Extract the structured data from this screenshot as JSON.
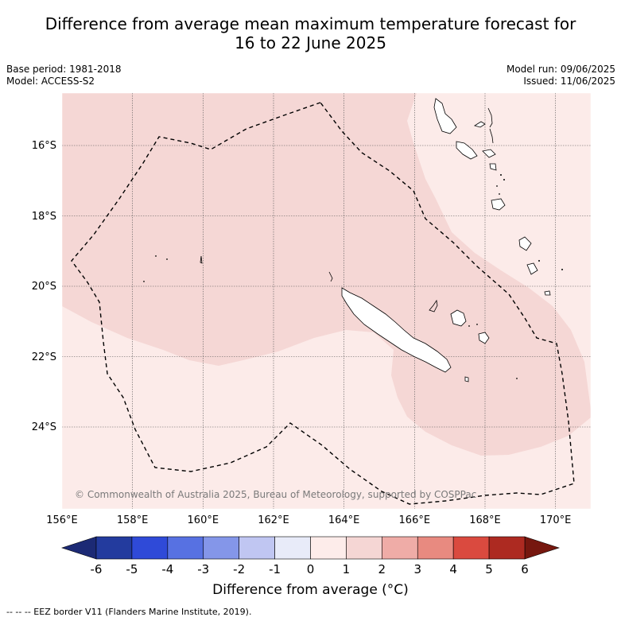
{
  "title": {
    "line1": "Difference from average mean maximum temperature forecast for",
    "line2": "16 to 22 June 2025"
  },
  "meta": {
    "base_period": "Base period: 1981-2018",
    "model": "Model: ACCESS-S2",
    "model_run": "Model run: 09/06/2025",
    "issued": "Issued: 11/06/2025"
  },
  "map": {
    "region": "New Caledonia and surrounding ocean",
    "lon_range": [
      156,
      171
    ],
    "lat_range": [
      -26.0,
      -14.8
    ],
    "lon_ticks": [
      "156°E",
      "158°E",
      "160°E",
      "162°E",
      "164°E",
      "166°E",
      "168°E",
      "170°E"
    ],
    "lat_ticks": [
      "16°S",
      "18°S",
      "20°S",
      "22°S",
      "24°S"
    ],
    "copyright": "© Commonwealth of Australia 2025, Bureau of Meteorology, supported by COSPPac",
    "regions": [
      {
        "anomaly_range": "1 to 2",
        "color": "#f5d7d5",
        "area": "north-west and eastern waters"
      },
      {
        "anomaly_range": "0 to 1",
        "color": "#fcebe9",
        "area": "south-west, far north-east and south-east"
      }
    ]
  },
  "colorbar": {
    "tick_labels": [
      "-6",
      "-5",
      "-4",
      "-3",
      "-2",
      "-1",
      "0",
      "1",
      "2",
      "3",
      "4",
      "5",
      "6"
    ],
    "colors": [
      "#233b9e",
      "#2f4ad8",
      "#5771e2",
      "#8496e9",
      "#c0c6f2",
      "#e8ebf9",
      "#fdecea",
      "#f5d6d4",
      "#efaca7",
      "#e88a80",
      "#da4a3f",
      "#ad2a21"
    ],
    "under_color": "#1c2a75",
    "over_color": "#76170f",
    "label": "Difference from average (°C)"
  },
  "legend_note": "--  --  -- EEZ border V11 (Flanders Marine Institute, 2019)."
}
